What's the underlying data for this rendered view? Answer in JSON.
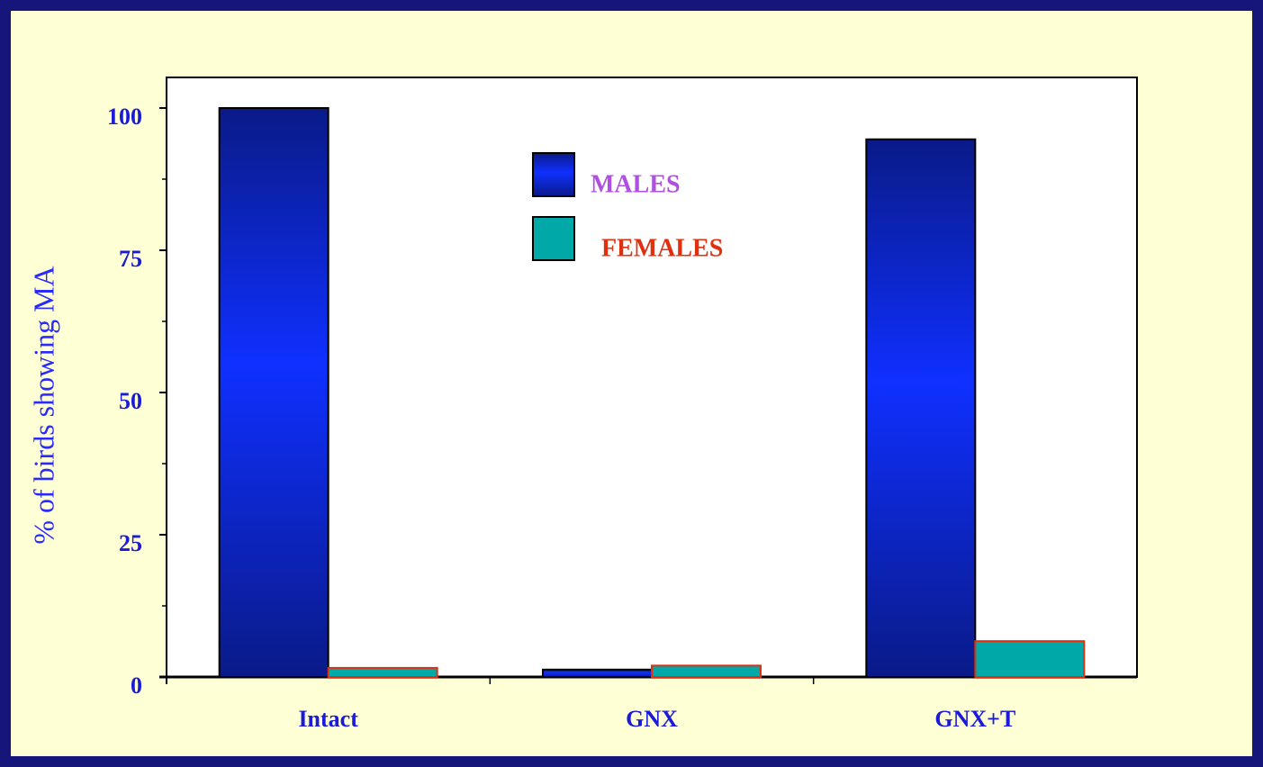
{
  "chart_data": {
    "type": "bar",
    "ylabel": "% of birds showing MA",
    "categories": [
      "Intact",
      "GNX",
      "GNX+T"
    ],
    "series": [
      {
        "name": "MALES",
        "color": "#1030f0",
        "values": [
          100,
          1.3,
          94.5
        ]
      },
      {
        "name": "FEMALES",
        "color": "#00a8a8",
        "values": [
          1.6,
          2,
          6.3
        ]
      }
    ],
    "ylim": [
      0,
      100
    ],
    "yticks": [
      0,
      25,
      50,
      75,
      100
    ]
  }
}
